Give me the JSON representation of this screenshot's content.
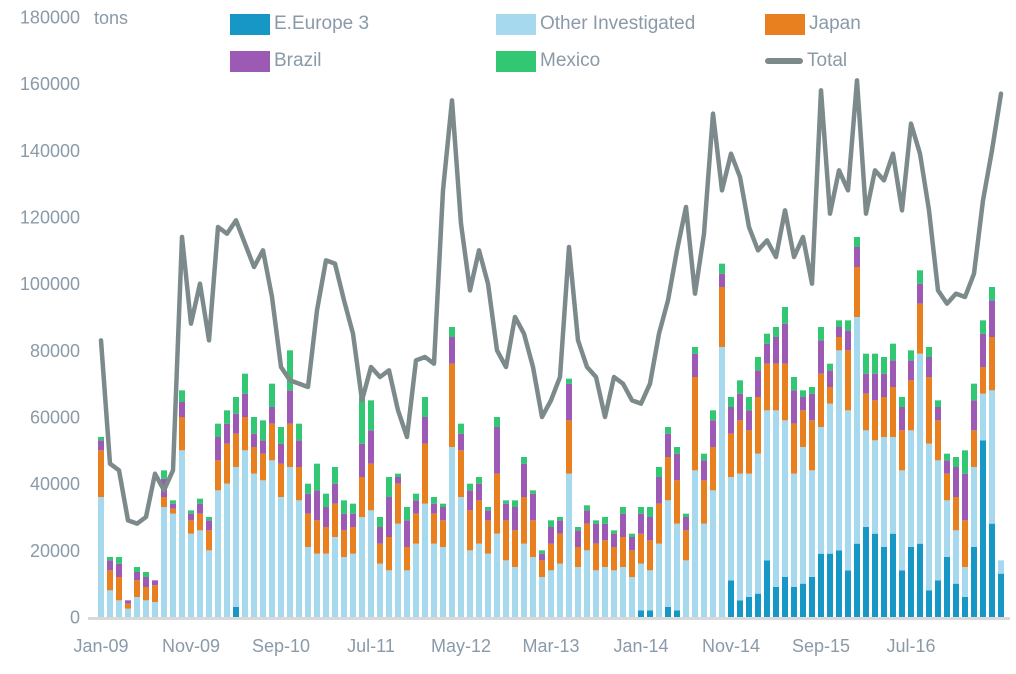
{
  "chart_data": {
    "type": "bar",
    "subtype": "stacked-bars-with-total-line",
    "title": "",
    "unit": "tons",
    "xlabel": "",
    "ylabel": "tons",
    "ylim": [
      0,
      180000
    ],
    "y_tick_step": 20000,
    "grid": false,
    "legend_position": "top",
    "axis_label_color": "#8a9aa8",
    "axis_line_color": "#d9d9d9",
    "x_tick_indices": [
      0,
      10,
      20,
      30,
      40,
      50,
      60,
      70,
      80,
      90
    ],
    "x_tick_labels": [
      "Jan-09",
      "Nov-09",
      "Sep-10",
      "Jul-11",
      "May-12",
      "Mar-13",
      "Jan-14",
      "Nov-14",
      "Sep-15",
      "Jul-16"
    ],
    "x": [
      "Jan-09",
      "Feb-09",
      "Mar-09",
      "Apr-09",
      "May-09",
      "Jun-09",
      "Jul-09",
      "Aug-09",
      "Sep-09",
      "Oct-09",
      "Nov-09",
      "Dec-09",
      "Jan-10",
      "Feb-10",
      "Mar-10",
      "Apr-10",
      "May-10",
      "Jun-10",
      "Jul-10",
      "Aug-10",
      "Sep-10",
      "Oct-10",
      "Nov-10",
      "Dec-10",
      "Jan-11",
      "Feb-11",
      "Mar-11",
      "Apr-11",
      "May-11",
      "Jun-11",
      "Jul-11",
      "Aug-11",
      "Sep-11",
      "Oct-11",
      "Nov-11",
      "Dec-11",
      "Jan-12",
      "Feb-12",
      "Mar-12",
      "Apr-12",
      "May-12",
      "Jun-12",
      "Jul-12",
      "Aug-12",
      "Sep-12",
      "Oct-12",
      "Nov-12",
      "Dec-12",
      "Jan-13",
      "Feb-13",
      "Mar-13",
      "Apr-13",
      "May-13",
      "Jun-13",
      "Jul-13",
      "Aug-13",
      "Sep-13",
      "Oct-13",
      "Nov-13",
      "Dec-13",
      "Jan-14",
      "Feb-14",
      "Mar-14",
      "Apr-14",
      "May-14",
      "Jun-14",
      "Jul-14",
      "Aug-14",
      "Sep-14",
      "Oct-14",
      "Nov-14",
      "Dec-14",
      "Jan-15",
      "Feb-15",
      "Mar-15",
      "Apr-15",
      "May-15",
      "Jun-15",
      "Jul-15",
      "Aug-15",
      "Sep-15",
      "Oct-15",
      "Nov-15",
      "Dec-15",
      "Jan-16",
      "Feb-16",
      "Mar-16",
      "Apr-16",
      "May-16",
      "Jun-16",
      "Jul-16",
      "Aug-16",
      "Sep-16",
      "Oct-16",
      "Nov-16",
      "Dec-16",
      "Jan-17",
      "Feb-17",
      "Mar-17",
      "Apr-17",
      "May-17"
    ],
    "series": [
      {
        "name": "E.Europe 3",
        "type": "bar",
        "color": "#1697c6",
        "values": [
          0,
          0,
          0,
          0,
          0,
          0,
          0,
          0,
          0,
          0,
          0,
          0,
          0,
          0,
          0,
          3000,
          0,
          0,
          0,
          0,
          0,
          0,
          0,
          0,
          0,
          0,
          0,
          0,
          0,
          0,
          0,
          0,
          0,
          0,
          0,
          0,
          0,
          0,
          0,
          0,
          0,
          0,
          0,
          0,
          0,
          0,
          0,
          0,
          0,
          0,
          0,
          0,
          0,
          0,
          0,
          0,
          0,
          0,
          0,
          0,
          2000,
          2000,
          0,
          3000,
          2000,
          0,
          0,
          0,
          0,
          0,
          11000,
          5000,
          6000,
          7000,
          17000,
          9000,
          12000,
          9000,
          10000,
          12000,
          19000,
          19000,
          20000,
          14000,
          22000,
          27000,
          25000,
          21000,
          25000,
          14000,
          21000,
          22000,
          8000,
          11000,
          18000,
          10000,
          6000,
          21000,
          53000,
          28000,
          13000
        ]
      },
      {
        "name": "Other Investigated",
        "type": "bar",
        "color": "#a6d9ee",
        "values": [
          36000,
          8000,
          5000,
          2500,
          6000,
          5000,
          4500,
          33000,
          31000,
          50000,
          25000,
          26000,
          20000,
          38000,
          40000,
          42000,
          50000,
          43000,
          41000,
          47000,
          36000,
          45000,
          35000,
          21000,
          19000,
          19000,
          24000,
          18000,
          19000,
          30000,
          32000,
          16000,
          14000,
          28000,
          14000,
          22000,
          34000,
          22000,
          21000,
          51000,
          36000,
          20000,
          22000,
          19000,
          25000,
          17000,
          15000,
          22000,
          18000,
          12000,
          14000,
          16000,
          43000,
          15000,
          20000,
          14000,
          15000,
          14000,
          15000,
          12000,
          14000,
          12000,
          22000,
          32000,
          26000,
          17000,
          44000,
          28000,
          38000,
          81000,
          31000,
          38000,
          37000,
          42000,
          45000,
          53000,
          47000,
          34000,
          41000,
          32000,
          38000,
          45000,
          60000,
          48000,
          68000,
          29000,
          28000,
          33000,
          29000,
          30000,
          35000,
          57000,
          44000,
          36000,
          17000,
          16000,
          9000,
          24000,
          14000,
          40000,
          4000
        ]
      },
      {
        "name": "Japan",
        "type": "bar",
        "color": "#e8801f",
        "values": [
          14000,
          6000,
          7000,
          1500,
          5000,
          4000,
          5000,
          3000,
          1500,
          10000,
          4000,
          5000,
          6000,
          9000,
          12000,
          10000,
          10000,
          8000,
          8000,
          11000,
          10000,
          13000,
          10000,
          10000,
          10000,
          8000,
          10000,
          8000,
          8000,
          12000,
          14000,
          6000,
          10000,
          12000,
          7000,
          9000,
          18000,
          9000,
          8000,
          25000,
          14000,
          12000,
          13000,
          10000,
          18000,
          12000,
          11000,
          14000,
          11000,
          5000,
          8000,
          9000,
          16000,
          6000,
          8000,
          8000,
          8000,
          7000,
          9000,
          8000,
          9000,
          9000,
          12000,
          13000,
          13000,
          9000,
          28000,
          13000,
          13000,
          18000,
          13000,
          16000,
          13000,
          17000,
          14000,
          14000,
          17000,
          15000,
          11000,
          15000,
          16000,
          5000,
          4000,
          18000,
          15000,
          11000,
          12000,
          12000,
          15000,
          12000,
          15000,
          15000,
          20000,
          12000,
          8000,
          10000,
          14000,
          11000,
          8000,
          16000,
          0
        ]
      },
      {
        "name": "Brazil",
        "type": "bar",
        "color": "#9d5ab5",
        "values": [
          3000,
          3000,
          4000,
          1000,
          2500,
          3000,
          1500,
          5500,
          1500,
          4500,
          2000,
          3000,
          3000,
          7000,
          6000,
          6000,
          7000,
          4000,
          4000,
          5000,
          6000,
          10000,
          8000,
          6000,
          9000,
          6000,
          6000,
          5000,
          4000,
          10000,
          10000,
          5000,
          12000,
          2000,
          8000,
          4000,
          8000,
          3000,
          4000,
          8000,
          5000,
          6000,
          5000,
          3000,
          14000,
          5000,
          7000,
          10000,
          8000,
          2000,
          5000,
          4000,
          11000,
          5000,
          4000,
          6000,
          5000,
          4000,
          7000,
          4000,
          6000,
          7000,
          8000,
          7000,
          8000,
          4000,
          7000,
          6000,
          8000,
          4000,
          8000,
          8000,
          6000,
          8000,
          6000,
          8000,
          12000,
          10000,
          4000,
          8000,
          10000,
          5000,
          3000,
          6000,
          6000,
          6000,
          8000,
          7000,
          8000,
          7000,
          6000,
          6000,
          6000,
          4000,
          4000,
          9000,
          14000,
          9000,
          10000,
          11000,
          0
        ]
      },
      {
        "name": "Mexico",
        "type": "bar",
        "color": "#32c873",
        "values": [
          1000,
          1000,
          2000,
          0,
          1500,
          1500,
          0,
          2500,
          1000,
          3500,
          1000,
          1500,
          1000,
          4000,
          4000,
          5000,
          6000,
          5000,
          6000,
          7000,
          5000,
          12000,
          5000,
          3000,
          8000,
          4000,
          5000,
          4000,
          3000,
          14000,
          9000,
          3000,
          6000,
          1000,
          4000,
          2000,
          6000,
          2000,
          1000,
          3000,
          3000,
          2000,
          2000,
          1000,
          3000,
          1000,
          2000,
          2000,
          1000,
          1000,
          2000,
          1000,
          1500,
          1000,
          1500,
          1000,
          2000,
          1000,
          2000,
          1000,
          2000,
          3000,
          3000,
          2000,
          2000,
          1000,
          2000,
          2000,
          3000,
          3000,
          3000,
          4000,
          4000,
          4000,
          3000,
          3000,
          5000,
          4000,
          2000,
          2000,
          4000,
          2000,
          2000,
          3000,
          3000,
          6000,
          6000,
          5000,
          5000,
          3000,
          3000,
          4000,
          3000,
          2000,
          2000,
          3000,
          7000,
          5000,
          4000,
          4000,
          0
        ]
      },
      {
        "name": "Total",
        "type": "line",
        "color": "#7d8a8b",
        "values": [
          83000,
          46000,
          44000,
          29000,
          28000,
          30000,
          43000,
          38000,
          44000,
          114000,
          88000,
          100000,
          83000,
          117000,
          115000,
          119000,
          112000,
          105000,
          110000,
          96000,
          75000,
          71000,
          70000,
          69000,
          92000,
          107000,
          106000,
          95000,
          85000,
          65000,
          75000,
          72000,
          74000,
          62000,
          54000,
          77000,
          78000,
          76000,
          128000,
          155000,
          118000,
          98000,
          110000,
          100000,
          80000,
          75000,
          90000,
          85000,
          75000,
          60000,
          65000,
          72000,
          111000,
          83000,
          75000,
          72000,
          60000,
          72000,
          70000,
          65000,
          64000,
          70000,
          85000,
          95000,
          110000,
          123000,
          97000,
          115000,
          151000,
          128000,
          139000,
          132000,
          117000,
          110000,
          113000,
          108000,
          122000,
          108000,
          114000,
          100000,
          158000,
          121000,
          134000,
          128000,
          161000,
          121000,
          134000,
          131000,
          139000,
          122000,
          148000,
          139000,
          122000,
          98000,
          94000,
          97000,
          96000,
          103000,
          125000,
          140000,
          157000
        ]
      }
    ]
  }
}
